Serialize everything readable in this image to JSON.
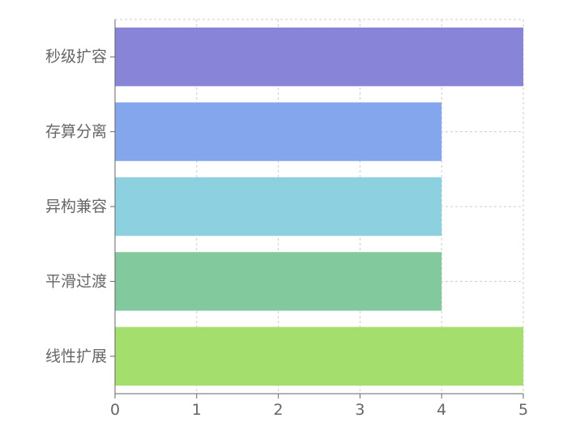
{
  "chart_data": {
    "type": "bar",
    "orientation": "horizontal",
    "categories": [
      "秒级扩容",
      "存算分离",
      "异构兼容",
      "平滑过渡",
      "线性扩展"
    ],
    "values": [
      5,
      4,
      4,
      4,
      5
    ],
    "colors": [
      "#8884d8",
      "#83a6ed",
      "#8dd1e1",
      "#82ca9d",
      "#a4de6c"
    ],
    "x_ticks": [
      0,
      1,
      2,
      3,
      4,
      5
    ],
    "xlim": [
      0,
      5
    ],
    "grid": true,
    "legend": "none",
    "title": "",
    "xlabel": "",
    "ylabel": ""
  }
}
